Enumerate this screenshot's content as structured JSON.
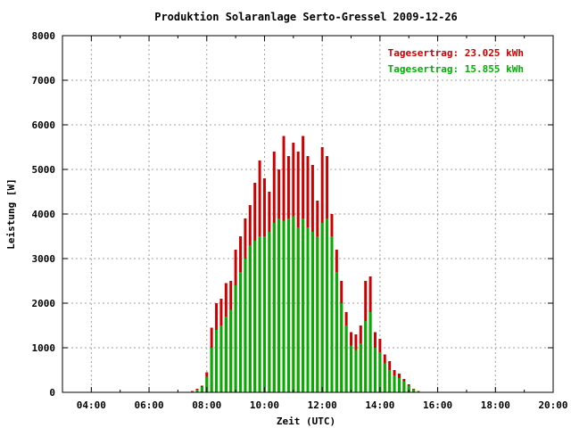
{
  "chart_data": {
    "type": "bar",
    "title": "Produktion Solaranlage Serto-Gressel 2009-12-26",
    "xlabel": "Zeit (UTC)",
    "ylabel": "Leistung [W]",
    "xlim_hours": [
      3.0,
      20.0
    ],
    "ylim": [
      0,
      8000
    ],
    "x_ticks": [
      "04:00",
      "06:00",
      "08:00",
      "10:00",
      "12:00",
      "14:00",
      "16:00",
      "18:00",
      "20:00"
    ],
    "y_ticks": [
      "0",
      "1000",
      "2000",
      "3000",
      "4000",
      "5000",
      "6000",
      "7000",
      "8000"
    ],
    "grid": true,
    "legend_position": "top-right",
    "colors": {
      "series1": "#cc0000",
      "series2": "#00b000"
    },
    "annotations": [
      "Tagesertrag: 23.025 kWh",
      "Tagesertrag: 15.855 kWh"
    ],
    "x": [
      "07:30",
      "07:40",
      "07:50",
      "08:00",
      "08:10",
      "08:20",
      "08:30",
      "08:40",
      "08:50",
      "09:00",
      "09:10",
      "09:20",
      "09:30",
      "09:40",
      "09:50",
      "10:00",
      "10:10",
      "10:20",
      "10:30",
      "10:40",
      "10:50",
      "11:00",
      "11:10",
      "11:20",
      "11:30",
      "11:40",
      "11:50",
      "12:00",
      "12:10",
      "12:20",
      "12:30",
      "12:40",
      "12:50",
      "13:00",
      "13:10",
      "13:20",
      "13:30",
      "13:40",
      "13:50",
      "14:00",
      "14:10",
      "14:20",
      "14:30",
      "14:40",
      "14:50",
      "15:00",
      "15:10",
      "15:20"
    ],
    "series": [
      {
        "values": [
          30,
          80,
          150,
          450,
          1450,
          2000,
          2100,
          2450,
          2500,
          3200,
          3500,
          3900,
          4200,
          4700,
          5200,
          4800,
          4500,
          5400,
          5000,
          5750,
          5300,
          5600,
          5400,
          5750,
          5300,
          5100,
          4300,
          5500,
          5300,
          4000,
          3200,
          2500,
          1800,
          1350,
          1300,
          1500,
          2500,
          2600,
          1350,
          1200,
          850,
          700,
          500,
          420,
          300,
          180,
          80,
          30
        ]
      },
      {
        "values": [
          20,
          60,
          120,
          350,
          1000,
          1400,
          1500,
          1700,
          1850,
          2400,
          2700,
          3000,
          3300,
          3400,
          3500,
          3500,
          3600,
          3800,
          3900,
          3850,
          3900,
          3950,
          3700,
          3900,
          3700,
          3600,
          3500,
          3800,
          3900,
          3500,
          2700,
          2000,
          1500,
          1050,
          950,
          1100,
          1600,
          1800,
          1000,
          900,
          650,
          500,
          380,
          320,
          250,
          150,
          70,
          25
        ]
      }
    ]
  }
}
